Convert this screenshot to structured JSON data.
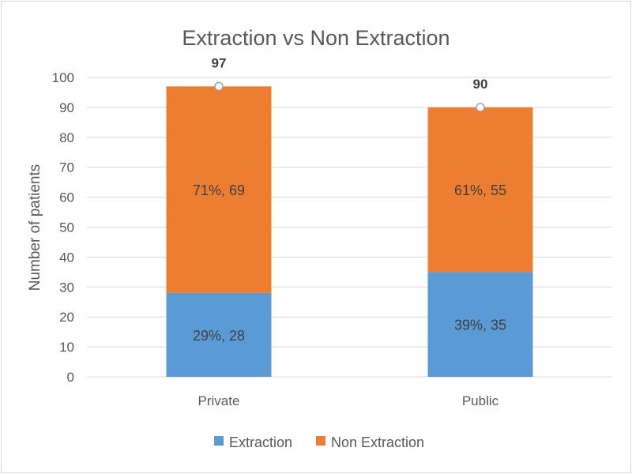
{
  "chart_data": {
    "type": "bar",
    "stacked": true,
    "title": "Extraction vs Non Extraction",
    "xlabel": "",
    "ylabel": "Number of patients",
    "ylim": [
      0,
      100
    ],
    "yticks": [
      "0",
      "10",
      "20",
      "30",
      "40",
      "50",
      "60",
      "70",
      "80",
      "90",
      "100"
    ],
    "categories": [
      "Private",
      "Public"
    ],
    "series": [
      {
        "name": "Extraction",
        "color": "#5b9bd5",
        "values": [
          28,
          35
        ],
        "labels": [
          "29%, 28",
          "39%, 35"
        ]
      },
      {
        "name": "Non Extraction",
        "color": "#ed7d31",
        "values": [
          69,
          55
        ],
        "labels": [
          "71%, 69",
          "61%, 55"
        ]
      }
    ],
    "totals": [
      97,
      90
    ],
    "total_labels": [
      "97",
      "90"
    ],
    "legend_position": "bottom",
    "grid": true
  }
}
